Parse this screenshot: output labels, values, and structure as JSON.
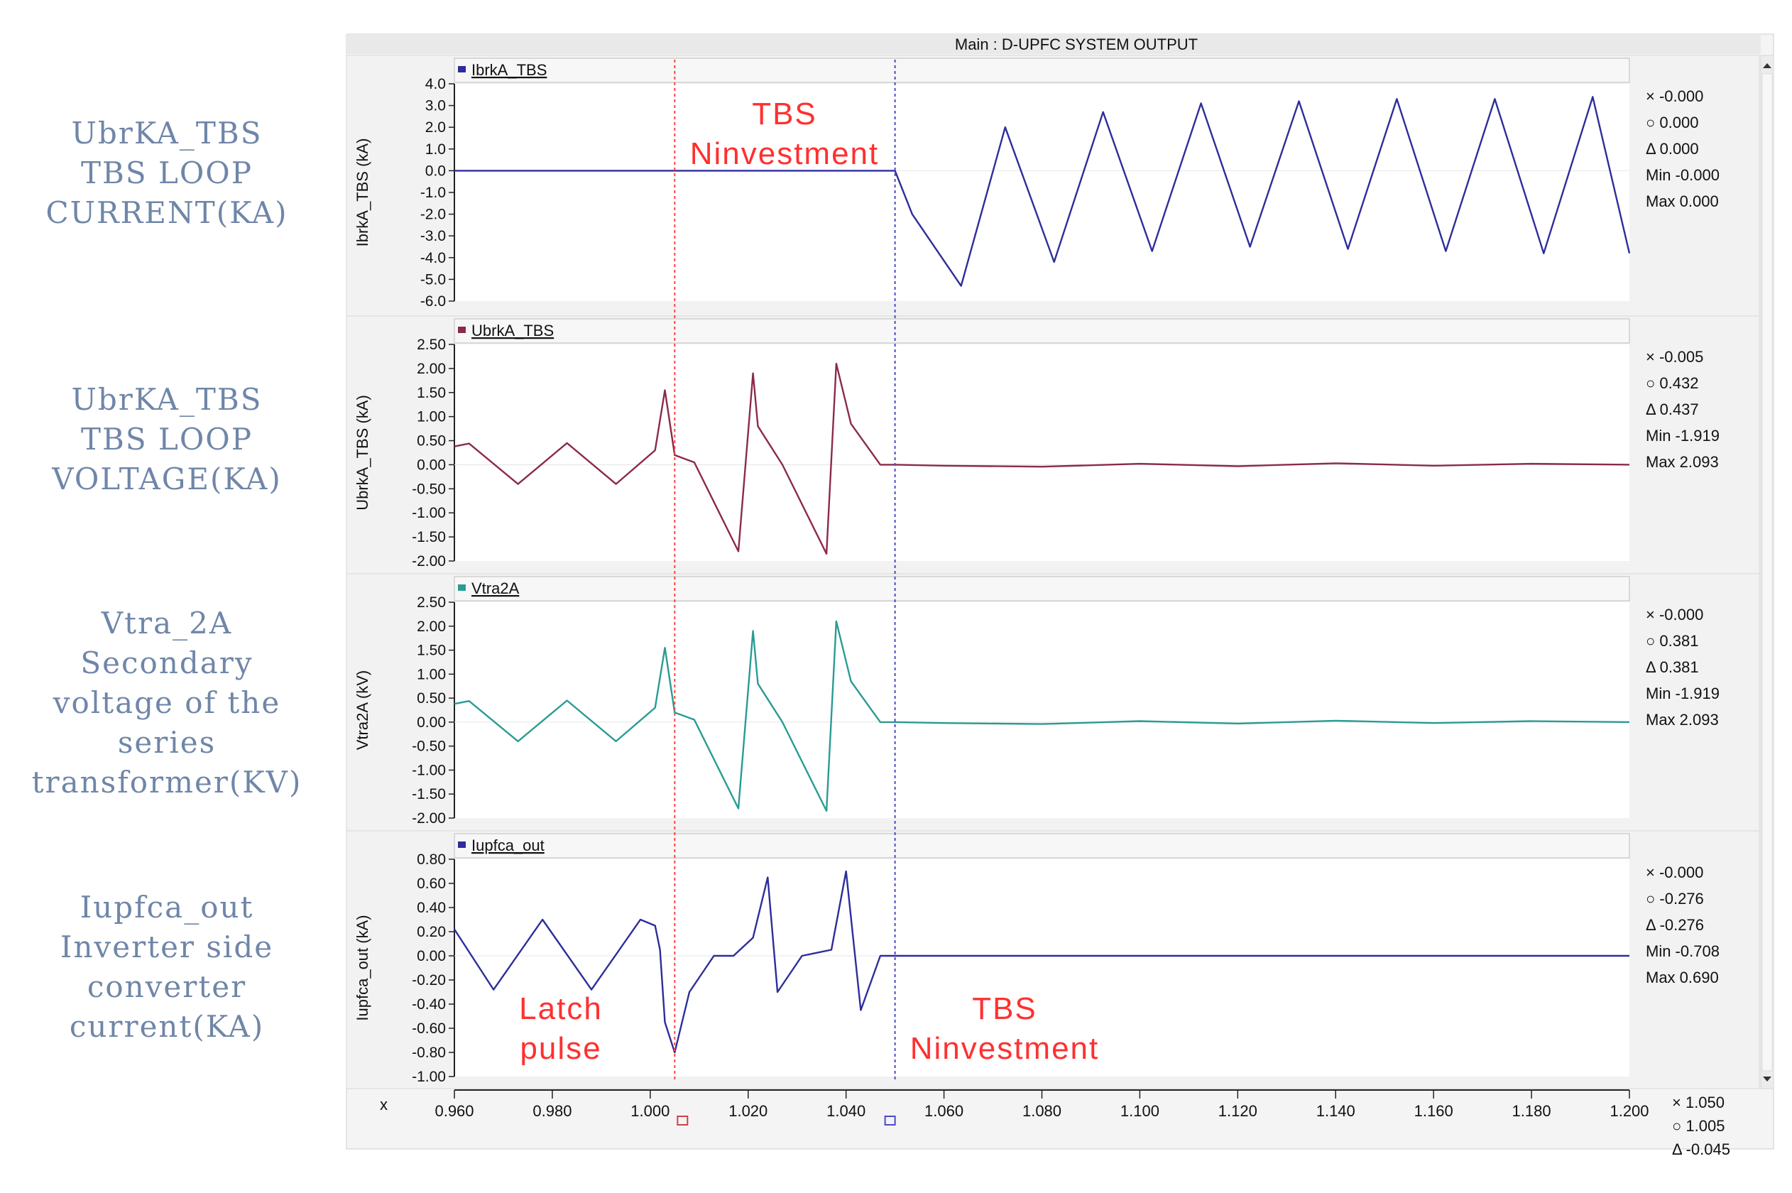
{
  "title": "Main : D-UPFC SYSTEM OUTPUT",
  "side_labels": [
    [
      "UbrKA_TBS",
      "TBS LOOP",
      "CURRENT(KA)"
    ],
    [
      "UbrKA_TBS",
      "TBS LOOP",
      "VOLTAGE(KA)"
    ],
    [
      "Vtra_2A",
      "Secondary",
      "voltage of the",
      "series",
      "transformer(KV)"
    ],
    [
      "Iupfca_out",
      "Inverter side",
      "converter",
      "current(KA)"
    ]
  ],
  "cursor_lines": {
    "red": {
      "x": 1.005,
      "color": "#ff4040"
    },
    "blue": {
      "x": 1.05,
      "color": "#4a4acf"
    }
  },
  "x_axis": {
    "label": "x",
    "range": [
      0.96,
      1.2
    ],
    "ticks": [
      "0.960",
      "0.980",
      "1.000",
      "1.020",
      "1.040",
      "1.060",
      "1.080",
      "1.100",
      "1.120",
      "1.140",
      "1.160",
      "1.180",
      "1.200"
    ],
    "readout": [
      {
        "sym": "×",
        "val": "1.050"
      },
      {
        "sym": "○",
        "val": "1.005"
      },
      {
        "sym": "Δ",
        "val": "-0.045"
      }
    ]
  },
  "annotations": [
    {
      "panel": 0,
      "lines": [
        "TBS",
        "Ninvestment"
      ]
    },
    {
      "panel": 3,
      "lines": [
        "Latch",
        "pulse"
      ]
    },
    {
      "panel": 3,
      "lines": [
        "TBS",
        "Ninvestment"
      ]
    }
  ],
  "chart_data": [
    {
      "type": "line",
      "title": "IbrkA_TBS",
      "ylabel": "IbrkA_TBS (kA)",
      "color": "#2d2d9b",
      "ylim": [
        -6.0,
        4.0
      ],
      "yticks": [
        "4.0",
        "3.0",
        "2.0",
        "1.0",
        "0.0",
        "-1.0",
        "-2.0",
        "-3.0",
        "-4.0",
        "-5.0",
        "-6.0"
      ],
      "series": [
        {
          "x": [
            0.96,
            1.05,
            1.0535,
            1.0635,
            1.0725,
            1.0825,
            1.0925,
            1.1025,
            1.1125,
            1.1225,
            1.1325,
            1.1425,
            1.1525,
            1.1625,
            1.1725,
            1.1825,
            1.1925,
            1.2
          ],
          "values": [
            0,
            0,
            -2.0,
            -5.3,
            2.0,
            -4.2,
            2.7,
            -3.7,
            3.1,
            -3.5,
            3.2,
            -3.6,
            3.3,
            -3.7,
            3.3,
            -3.8,
            3.4,
            -3.8
          ]
        }
      ],
      "readout": [
        {
          "sym": "×",
          "label": "",
          "val": "-0.000"
        },
        {
          "sym": "○",
          "label": "",
          "val": "0.000"
        },
        {
          "sym": "Δ",
          "label": "",
          "val": "0.000"
        },
        {
          "sym": "",
          "label": "Min",
          "val": "-0.000"
        },
        {
          "sym": "",
          "label": "Max",
          "val": "0.000"
        }
      ]
    },
    {
      "type": "line",
      "title": "UbrkA_TBS",
      "ylabel": "UbrkA_TBS (kA)",
      "color": "#8b2a4b",
      "ylim": [
        -2.0,
        2.5
      ],
      "yticks": [
        "2.50",
        "2.00",
        "1.50",
        "1.00",
        "0.50",
        "0.00",
        "-0.50",
        "-1.00",
        "-1.50",
        "-2.00"
      ],
      "series": [
        {
          "x": [
            0.96,
            0.963,
            0.973,
            0.983,
            0.993,
            1.001,
            1.003,
            1.005,
            1.009,
            1.018,
            1.021,
            1.022,
            1.027,
            1.036,
            1.038,
            1.041,
            1.047,
            1.05,
            1.06,
            1.08,
            1.1,
            1.12,
            1.14,
            1.16,
            1.18,
            1.2
          ],
          "values": [
            0.38,
            0.44,
            -0.4,
            0.45,
            -0.4,
            0.3,
            1.55,
            0.2,
            0.05,
            -1.8,
            1.9,
            0.8,
            0.0,
            -1.85,
            2.1,
            0.85,
            0.0,
            0.0,
            -0.02,
            -0.04,
            0.02,
            -0.03,
            0.03,
            -0.02,
            0.02,
            0.0
          ]
        }
      ],
      "readout": [
        {
          "sym": "×",
          "label": "",
          "val": "-0.005"
        },
        {
          "sym": "○",
          "label": "",
          "val": "0.432"
        },
        {
          "sym": "Δ",
          "label": "",
          "val": "0.437"
        },
        {
          "sym": "",
          "label": "Min",
          "val": "-1.919"
        },
        {
          "sym": "",
          "label": "Max",
          "val": "2.093"
        }
      ]
    },
    {
      "type": "line",
      "title": "Vtra2A",
      "ylabel": "Vtra2A (kV)",
      "color": "#2a9b93",
      "ylim": [
        -2.0,
        2.5
      ],
      "yticks": [
        "2.50",
        "2.00",
        "1.50",
        "1.00",
        "0.50",
        "0.00",
        "-0.50",
        "-1.00",
        "-1.50",
        "-2.00"
      ],
      "series": [
        {
          "x": [
            0.96,
            0.963,
            0.973,
            0.983,
            0.993,
            1.001,
            1.003,
            1.005,
            1.009,
            1.018,
            1.021,
            1.022,
            1.027,
            1.036,
            1.038,
            1.041,
            1.047,
            1.05,
            1.06,
            1.08,
            1.1,
            1.12,
            1.14,
            1.16,
            1.18,
            1.2
          ],
          "values": [
            0.38,
            0.44,
            -0.4,
            0.45,
            -0.4,
            0.3,
            1.55,
            0.2,
            0.05,
            -1.8,
            1.9,
            0.8,
            0.0,
            -1.85,
            2.1,
            0.85,
            0.0,
            0.0,
            -0.02,
            -0.04,
            0.02,
            -0.03,
            0.03,
            -0.02,
            0.02,
            0.0
          ]
        }
      ],
      "readout": [
        {
          "sym": "×",
          "label": "",
          "val": "-0.000"
        },
        {
          "sym": "○",
          "label": "",
          "val": "0.381"
        },
        {
          "sym": "Δ",
          "label": "",
          "val": "0.381"
        },
        {
          "sym": "",
          "label": "Min",
          "val": "-1.919"
        },
        {
          "sym": "",
          "label": "Max",
          "val": "2.093"
        }
      ]
    },
    {
      "type": "line",
      "title": "Iupfca_out",
      "ylabel": "Iupfca_out (kA)",
      "color": "#2d2d9b",
      "ylim": [
        -1.0,
        0.8
      ],
      "yticks": [
        "0.80",
        "0.60",
        "0.40",
        "0.20",
        "0.00",
        "-0.20",
        "-0.40",
        "-0.60",
        "-0.80",
        "-1.00"
      ],
      "series": [
        {
          "x": [
            0.96,
            0.968,
            0.978,
            0.988,
            0.998,
            1.001,
            1.002,
            1.003,
            1.005,
            1.008,
            1.013,
            1.017,
            1.021,
            1.024,
            1.026,
            1.031,
            1.037,
            1.04,
            1.043,
            1.047,
            1.05,
            1.06,
            1.2
          ],
          "values": [
            0.22,
            -0.28,
            0.3,
            -0.28,
            0.3,
            0.25,
            0.05,
            -0.55,
            -0.8,
            -0.3,
            0.0,
            0.0,
            0.15,
            0.65,
            -0.3,
            0.0,
            0.05,
            0.7,
            -0.45,
            0.0,
            0.0,
            0.0,
            0.0
          ]
        }
      ],
      "readout": [
        {
          "sym": "×",
          "label": "",
          "val": "-0.000"
        },
        {
          "sym": "○",
          "label": "",
          "val": "-0.276"
        },
        {
          "sym": "Δ",
          "label": "",
          "val": "-0.276"
        },
        {
          "sym": "",
          "label": "Min",
          "val": "-0.708"
        },
        {
          "sym": "",
          "label": "Max",
          "val": "0.690"
        }
      ]
    }
  ]
}
